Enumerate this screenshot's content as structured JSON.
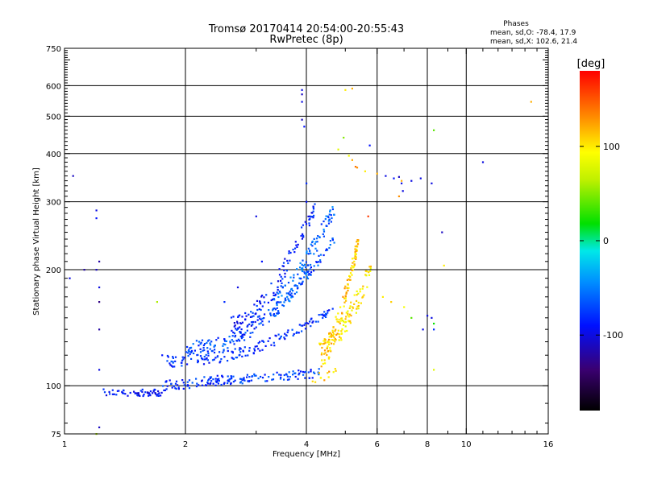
{
  "chart_data": {
    "type": "scatter",
    "title": "Tromsø 20170414 20:54:00-20:55:43",
    "subtitle": "RwPretec (8p)",
    "xlabel": "Frequency [MHz]",
    "ylabel": "Stationary phase Virtual Height [km]",
    "xscale": "log",
    "yscale": "log",
    "xlim": [
      1,
      16
    ],
    "ylim": [
      75,
      750
    ],
    "xticks": [
      1,
      2,
      4,
      6,
      8,
      10,
      16
    ],
    "xtick_labels": [
      "1",
      "2",
      "4",
      "6",
      "8",
      "10",
      "16"
    ],
    "yticks": [
      75,
      100,
      200,
      300,
      400,
      500,
      600,
      750
    ],
    "ytick_labels": [
      "75",
      "100",
      "200",
      "300",
      "400",
      "500",
      "600",
      "750"
    ],
    "grid": true,
    "stats": {
      "heading": "Phases",
      "line_o": "mean, sd,O: -78.4, 17.9",
      "line_x": "mean, sd,X: 102.6, 21.4",
      "mean_o": -78.4,
      "sd_o": 17.9,
      "mean_x": 102.6,
      "sd_x": 21.4
    },
    "colorbar": {
      "label": "[deg]",
      "range": [
        -180,
        180
      ],
      "ticks": [
        -100,
        0,
        100
      ],
      "tick_labels": [
        "-100",
        "0",
        "100"
      ],
      "colormap": "rainbow"
    },
    "traces": [
      {
        "f0": 1.25,
        "f1": 1.75,
        "h0": 96,
        "h1": 96,
        "phase": -90,
        "n": 60,
        "spread": 2,
        "pl": 1
      },
      {
        "f0": 1.75,
        "f1": 2.6,
        "h0": 100,
        "h1": 104,
        "phase": -80,
        "n": 70,
        "spread": 3,
        "pl": 1
      },
      {
        "f0": 2.4,
        "f1": 4.3,
        "h0": 103,
        "h1": 108,
        "phase": -75,
        "n": 90,
        "spread": 3,
        "pl": 1
      },
      {
        "f0": 4.1,
        "f1": 4.75,
        "h0": 104,
        "h1": 108,
        "phase": 110,
        "n": 12,
        "spread": 3,
        "pl": 1
      },
      {
        "f0": 1.8,
        "f1": 4.7,
        "h0": 116,
        "h1": 160,
        "phase": -80,
        "n": 150,
        "spread": 4,
        "pl": 2.4
      },
      {
        "f0": 2.0,
        "f1": 4.7,
        "h0": 125,
        "h1": 240,
        "phase": -70,
        "n": 160,
        "spread": 6,
        "pl": 2.5
      },
      {
        "f0": 2.6,
        "f1": 4.2,
        "h0": 140,
        "h1": 290,
        "phase": -85,
        "n": 140,
        "spread": 12,
        "pl": 2
      },
      {
        "f0": 3.3,
        "f1": 4.7,
        "h0": 160,
        "h1": 290,
        "phase": -60,
        "n": 120,
        "spread": 14,
        "pl": 1.6
      },
      {
        "f0": 4.3,
        "f1": 5.4,
        "h0": 120,
        "h1": 240,
        "phase": 110,
        "n": 140,
        "spread": 10,
        "pl": 2
      },
      {
        "f0": 4.8,
        "f1": 5.8,
        "h0": 140,
        "h1": 200,
        "phase": 100,
        "n": 70,
        "spread": 12,
        "pl": 1.4
      }
    ],
    "points": [
      [
        1.05,
        350,
        -110
      ],
      [
        1.2,
        285,
        -100
      ],
      [
        1.2,
        272,
        -90
      ],
      [
        1.22,
        210,
        -120
      ],
      [
        1.2,
        200,
        -110
      ],
      [
        1.22,
        180,
        -100
      ],
      [
        1.22,
        165,
        -130
      ],
      [
        1.22,
        140,
        -120
      ],
      [
        1.22,
        110,
        -100
      ],
      [
        1.22,
        78,
        -110
      ],
      [
        1.12,
        200,
        -120
      ],
      [
        1.03,
        190,
        -100
      ],
      [
        1.2,
        75,
        60
      ],
      [
        1.7,
        165,
        60
      ],
      [
        1.75,
        120,
        -90
      ],
      [
        3.9,
        585,
        -100
      ],
      [
        3.9,
        570,
        -110
      ],
      [
        3.9,
        545,
        -100
      ],
      [
        3.9,
        490,
        -110
      ],
      [
        3.95,
        470,
        -90
      ],
      [
        5.0,
        585,
        100
      ],
      [
        5.2,
        590,
        120
      ],
      [
        4.95,
        440,
        50
      ],
      [
        4.8,
        410,
        80
      ],
      [
        5.1,
        395,
        90
      ],
      [
        5.2,
        385,
        120
      ],
      [
        5.3,
        370,
        140
      ],
      [
        5.35,
        368,
        130
      ],
      [
        5.6,
        360,
        100
      ],
      [
        5.75,
        420,
        -90
      ],
      [
        6.0,
        355,
        120
      ],
      [
        6.3,
        350,
        -100
      ],
      [
        6.6,
        345,
        -90
      ],
      [
        6.8,
        348,
        -110
      ],
      [
        6.9,
        340,
        120
      ],
      [
        6.9,
        335,
        -100
      ],
      [
        6.95,
        320,
        -100
      ],
      [
        7.3,
        340,
        -100
      ],
      [
        7.7,
        345,
        -100
      ],
      [
        8.2,
        335,
        -100
      ],
      [
        8.3,
        460,
        40
      ],
      [
        8.7,
        250,
        -110
      ],
      [
        8.8,
        205,
        100
      ],
      [
        11,
        380,
        -100
      ],
      [
        14.5,
        545,
        120
      ],
      [
        4.0,
        335,
        -80
      ],
      [
        4.0,
        300,
        -90
      ],
      [
        6.8,
        310,
        130
      ],
      [
        5.7,
        275,
        160
      ],
      [
        6.2,
        170,
        100
      ],
      [
        6.5,
        165,
        110
      ],
      [
        7.0,
        160,
        90
      ],
      [
        8.0,
        152,
        -100
      ],
      [
        8.3,
        145,
        20
      ],
      [
        8.3,
        140,
        -80
      ],
      [
        7.3,
        150,
        40
      ],
      [
        7.8,
        140,
        -100
      ],
      [
        8.3,
        110,
        80
      ],
      [
        8.2,
        150,
        -100
      ],
      [
        3.0,
        275,
        -100
      ],
      [
        2.7,
        180,
        -100
      ],
      [
        2.5,
        165,
        -80
      ],
      [
        3.1,
        210,
        -90
      ]
    ]
  }
}
